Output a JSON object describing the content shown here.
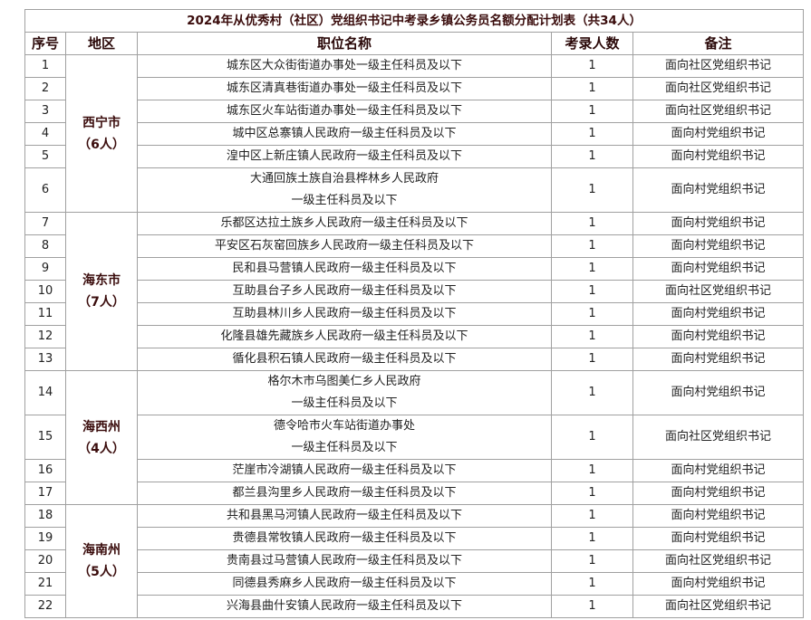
{
  "title": "2024年从优秀村（社区）党组织书记中考录乡镇公务员名额分配计划表（共34人）",
  "headers": [
    "序号",
    "地区",
    "职位名称",
    "考录人数",
    "备注"
  ],
  "regions": [
    {
      "name": "西宁市",
      "count": "（6人）",
      "rows": 6
    },
    {
      "name": "海东市",
      "count": "（7人）",
      "rows": 7
    },
    {
      "name": "海西州",
      "count": "（4人）",
      "rows": 4
    },
    {
      "name": "海南州",
      "count": "（5人）",
      "rows": 5
    }
  ],
  "rows": [
    {
      "no": "1",
      "position": [
        "城东区大众街街道办事处一级主任科员及以下"
      ],
      "count": "1",
      "note": "面向社区党组织书记"
    },
    {
      "no": "2",
      "position": [
        "城东区清真巷街道办事处一级主任科员及以下"
      ],
      "count": "1",
      "note": "面向社区党组织书记"
    },
    {
      "no": "3",
      "position": [
        "城东区火车站街道办事处一级主任科员及以下"
      ],
      "count": "1",
      "note": "面向社区党组织书记"
    },
    {
      "no": "4",
      "position": [
        "城中区总寨镇人民政府一级主任科员及以下"
      ],
      "count": "1",
      "note": "面向村党组织书记"
    },
    {
      "no": "5",
      "position": [
        "湟中区上新庄镇人民政府一级主任科员及以下"
      ],
      "count": "1",
      "note": "面向村党组织书记"
    },
    {
      "no": "6",
      "position": [
        "大通回族土族自治县桦林乡人民政府",
        "一级主任科员及以下"
      ],
      "count": "1",
      "note": "面向村党组织书记"
    },
    {
      "no": "7",
      "position": [
        "乐都区达拉土族乡人民政府一级主任科员及以下"
      ],
      "count": "1",
      "note": "面向村党组织书记"
    },
    {
      "no": "8",
      "position": [
        "平安区石灰窑回族乡人民政府一级主任科员及以下"
      ],
      "count": "1",
      "note": "面向村党组织书记"
    },
    {
      "no": "9",
      "position": [
        "民和县马营镇人民政府一级主任科员及以下"
      ],
      "count": "1",
      "note": "面向村党组织书记"
    },
    {
      "no": "10",
      "position": [
        "互助县台子乡人民政府一级主任科员及以下"
      ],
      "count": "1",
      "note": "面向社区党组织书记"
    },
    {
      "no": "11",
      "position": [
        "互助县林川乡人民政府一级主任科员及以下"
      ],
      "count": "1",
      "note": "面向村党组织书记"
    },
    {
      "no": "12",
      "position": [
        "化隆县雄先藏族乡人民政府一级主任科员及以下"
      ],
      "count": "1",
      "note": "面向村党组织书记"
    },
    {
      "no": "13",
      "position": [
        "循化县积石镇人民政府一级主任科员及以下"
      ],
      "count": "1",
      "note": "面向村党组织书记"
    },
    {
      "no": "14",
      "position": [
        "格尔木市乌图美仁乡人民政府",
        "一级主任科员及以下"
      ],
      "count": "1",
      "note": "面向村党组织书记"
    },
    {
      "no": "15",
      "position": [
        "德令哈市火车站街道办事处",
        "一级主任科员及以下"
      ],
      "count": "1",
      "note": "面向社区党组织书记"
    },
    {
      "no": "16",
      "position": [
        "茫崖市冷湖镇人民政府一级主任科员及以下"
      ],
      "count": "1",
      "note": "面向村党组织书记"
    },
    {
      "no": "17",
      "position": [
        "都兰县沟里乡人民政府一级主任科员及以下"
      ],
      "count": "1",
      "note": "面向村党组织书记"
    },
    {
      "no": "18",
      "position": [
        "共和县黑马河镇人民政府一级主任科员及以下"
      ],
      "count": "1",
      "note": "面向村党组织书记"
    },
    {
      "no": "19",
      "position": [
        "贵德县常牧镇人民政府一级主任科员及以下"
      ],
      "count": "1",
      "note": "面向村党组织书记"
    },
    {
      "no": "20",
      "position": [
        "贵南县过马营镇人民政府一级主任科员及以下"
      ],
      "count": "1",
      "note": "面向社区党组织书记"
    },
    {
      "no": "21",
      "position": [
        "同德县秀麻乡人民政府一级主任科员及以下"
      ],
      "count": "1",
      "note": "面向村党组织书记"
    },
    {
      "no": "22",
      "position": [
        "兴海县曲什安镇人民政府一级主任科员及以下"
      ],
      "count": "1",
      "note": "面向社区党组织书记"
    }
  ]
}
